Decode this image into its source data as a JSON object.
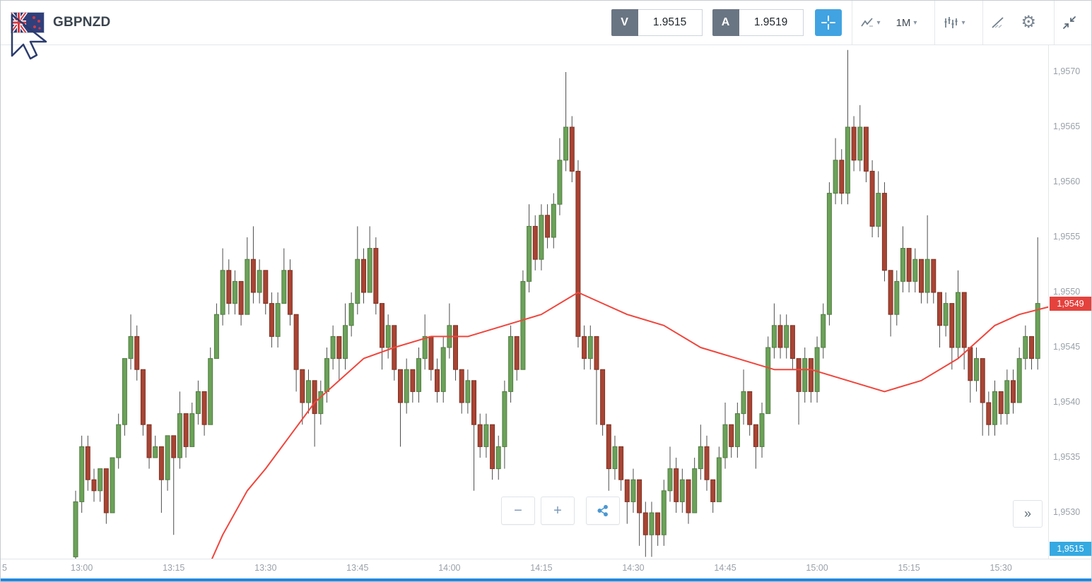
{
  "window": {
    "title": "GBPNZD"
  },
  "header": {
    "symbol": "GBPNZD",
    "sell_button": {
      "label": "V",
      "price": "1.9515"
    },
    "buy_button": {
      "label": "A",
      "price": "1.9519"
    },
    "timeframe": {
      "value": "1M"
    }
  },
  "glyphs": {
    "chevron_down": "▾",
    "gear": "⚙",
    "zoom_out": "−",
    "zoom_in": "+",
    "fast_forward": "»"
  },
  "icons": {
    "flag": "gbpnzd-flag-icon",
    "cursor": "mouse-cursor-artifact",
    "crosshair": "crosshair-icon",
    "chart_type": "chart-type-icon",
    "indicators": "indicators-icon",
    "drawing": "trend-line-icon",
    "settings": "gear-icon",
    "collapse": "collapse-arrows-icon",
    "share": "share-icon"
  },
  "colors": {
    "accent_blue": "#41a3e1",
    "quote_tag_gray": "#6a7583",
    "badge_red": "#e5423d",
    "badge_blue": "#35a9e1",
    "scrollbar_blue": "#1f88e0"
  },
  "price_axis": {
    "labels": [
      {
        "text": "1,9570",
        "value": 1.957
      },
      {
        "text": "1,9565",
        "value": 1.9565
      },
      {
        "text": "1,9560",
        "value": 1.956
      },
      {
        "text": "1,9555",
        "value": 1.9555
      },
      {
        "text": "1,9550",
        "value": 1.955
      },
      {
        "text": "1,9545",
        "value": 1.9545
      },
      {
        "text": "1,9540",
        "value": 1.954
      },
      {
        "text": "1,9535",
        "value": 1.9535
      },
      {
        "text": "1,9530",
        "value": 1.953
      }
    ],
    "last_price_badge": {
      "text": "1,9549",
      "value": 1.9549,
      "color": "#e5423d"
    },
    "bid_badge": {
      "text": "1,9515",
      "color": "#35a9e1"
    }
  },
  "time_axis": {
    "start": "12:59",
    "interval_min": 1,
    "labels": [
      "13:00",
      "13:15",
      "13:30",
      "13:45",
      "14:00",
      "14:15",
      "14:30",
      "14:45",
      "15:00",
      "15:15",
      "15:30"
    ],
    "partial_left_label": "5"
  },
  "chart_data": {
    "type": "candlestick",
    "symbol": "GBPNZD",
    "interval": "1M",
    "start_time": "12:59",
    "price_scale": {
      "top": 1.95725,
      "bottom": 1.95258,
      "grid": false,
      "axis_position": "right"
    },
    "colors": {
      "up": "#6ba259",
      "up_border": "#527c42",
      "down": "#a94434",
      "down_border": "#7e3223",
      "wick": "#4d4d4d"
    },
    "candles": [
      [
        1.9526,
        1.9532,
        1.9525,
        1.9531
      ],
      [
        1.9531,
        1.9537,
        1.953,
        1.9536
      ],
      [
        1.9536,
        1.9537,
        1.9532,
        1.9533
      ],
      [
        1.9533,
        1.9534,
        1.9531,
        1.9532
      ],
      [
        1.9532,
        1.9534,
        1.9531,
        1.9534
      ],
      [
        1.9534,
        1.9534,
        1.9529,
        1.953
      ],
      [
        1.953,
        1.9535,
        1.953,
        1.9535
      ],
      [
        1.9535,
        1.9539,
        1.9534,
        1.9538
      ],
      [
        1.9538,
        1.9544,
        1.9537,
        1.9544
      ],
      [
        1.9544,
        1.9548,
        1.9543,
        1.9546
      ],
      [
        1.9546,
        1.9547,
        1.9542,
        1.9543
      ],
      [
        1.9543,
        1.9543,
        1.9537,
        1.9538
      ],
      [
        1.9538,
        1.9538,
        1.9534,
        1.9535
      ],
      [
        1.9535,
        1.9537,
        1.9535,
        1.9536
      ],
      [
        1.9536,
        1.9536,
        1.953,
        1.9533
      ],
      [
        1.9533,
        1.9537,
        1.9532,
        1.9537
      ],
      [
        1.9537,
        1.9537,
        1.9528,
        1.9535
      ],
      [
        1.9535,
        1.9541,
        1.9534,
        1.9539
      ],
      [
        1.9539,
        1.9539,
        1.9535,
        1.9536
      ],
      [
        1.9536,
        1.954,
        1.9536,
        1.9539
      ],
      [
        1.9539,
        1.9542,
        1.9538,
        1.9541
      ],
      [
        1.9541,
        1.9541,
        1.9537,
        1.9538
      ],
      [
        1.9538,
        1.9545,
        1.9538,
        1.9544
      ],
      [
        1.9544,
        1.9549,
        1.9544,
        1.9548
      ],
      [
        1.9548,
        1.9554,
        1.9547,
        1.9552
      ],
      [
        1.9552,
        1.9553,
        1.9548,
        1.9549
      ],
      [
        1.9549,
        1.9552,
        1.9548,
        1.9551
      ],
      [
        1.9551,
        1.9551,
        1.9547,
        1.9548
      ],
      [
        1.9548,
        1.9555,
        1.9548,
        1.9553
      ],
      [
        1.9553,
        1.9556,
        1.9549,
        1.955
      ],
      [
        1.955,
        1.9553,
        1.9549,
        1.9552
      ],
      [
        1.9552,
        1.9552,
        1.9548,
        1.9549
      ],
      [
        1.9549,
        1.955,
        1.9545,
        1.9546
      ],
      [
        1.9546,
        1.955,
        1.9545,
        1.9549
      ],
      [
        1.9549,
        1.9554,
        1.9549,
        1.9552
      ],
      [
        1.9552,
        1.9553,
        1.9547,
        1.9548
      ],
      [
        1.9548,
        1.9548,
        1.9541,
        1.9543
      ],
      [
        1.9543,
        1.9543,
        1.9538,
        1.954
      ],
      [
        1.954,
        1.9543,
        1.9539,
        1.9542
      ],
      [
        1.9542,
        1.9542,
        1.9536,
        1.9539
      ],
      [
        1.9539,
        1.9542,
        1.9538,
        1.9541
      ],
      [
        1.9541,
        1.9545,
        1.954,
        1.9544
      ],
      [
        1.9544,
        1.9547,
        1.9543,
        1.9546
      ],
      [
        1.9546,
        1.9546,
        1.9542,
        1.9544
      ],
      [
        1.9544,
        1.9549,
        1.9543,
        1.9547
      ],
      [
        1.9547,
        1.955,
        1.9546,
        1.9549
      ],
      [
        1.9549,
        1.9556,
        1.9548,
        1.9553
      ],
      [
        1.9553,
        1.9554,
        1.9549,
        1.955
      ],
      [
        1.955,
        1.9556,
        1.955,
        1.9554
      ],
      [
        1.9554,
        1.9555,
        1.9548,
        1.9549
      ],
      [
        1.9549,
        1.9549,
        1.9543,
        1.9545
      ],
      [
        1.9545,
        1.9548,
        1.9544,
        1.9547
      ],
      [
        1.9547,
        1.9547,
        1.9542,
        1.9543
      ],
      [
        1.9543,
        1.9543,
        1.9536,
        1.954
      ],
      [
        1.954,
        1.9544,
        1.9539,
        1.9543
      ],
      [
        1.9543,
        1.9543,
        1.954,
        1.9541
      ],
      [
        1.9541,
        1.9545,
        1.954,
        1.9544
      ],
      [
        1.9544,
        1.9548,
        1.9543,
        1.9546
      ],
      [
        1.9546,
        1.9546,
        1.9542,
        1.9543
      ],
      [
        1.9543,
        1.9544,
        1.954,
        1.9541
      ],
      [
        1.9541,
        1.9546,
        1.954,
        1.9545
      ],
      [
        1.9545,
        1.9549,
        1.9544,
        1.9547
      ],
      [
        1.9547,
        1.9547,
        1.9542,
        1.9543
      ],
      [
        1.9543,
        1.9543,
        1.9539,
        1.954
      ],
      [
        1.954,
        1.9543,
        1.9539,
        1.9542
      ],
      [
        1.9542,
        1.9542,
        1.9532,
        1.9538
      ],
      [
        1.9538,
        1.9539,
        1.9535,
        1.9536
      ],
      [
        1.9536,
        1.9539,
        1.9535,
        1.9538
      ],
      [
        1.9538,
        1.9538,
        1.9533,
        1.9534
      ],
      [
        1.9534,
        1.9537,
        1.9533,
        1.9536
      ],
      [
        1.9536,
        1.9542,
        1.9534,
        1.9541
      ],
      [
        1.9541,
        1.9547,
        1.954,
        1.9546
      ],
      [
        1.9546,
        1.9546,
        1.9542,
        1.9543
      ],
      [
        1.9543,
        1.9552,
        1.9543,
        1.9551
      ],
      [
        1.9551,
        1.9558,
        1.955,
        1.9556
      ],
      [
        1.9556,
        1.9557,
        1.9552,
        1.9553
      ],
      [
        1.9553,
        1.9558,
        1.9552,
        1.9557
      ],
      [
        1.9557,
        1.9558,
        1.9554,
        1.9555
      ],
      [
        1.9555,
        1.9559,
        1.9554,
        1.9558
      ],
      [
        1.9558,
        1.9564,
        1.9557,
        1.9562
      ],
      [
        1.9562,
        1.957,
        1.9561,
        1.9565
      ],
      [
        1.9565,
        1.9566,
        1.956,
        1.9561
      ],
      [
        1.9561,
        1.9562,
        1.9545,
        1.9546
      ],
      [
        1.9546,
        1.9547,
        1.9543,
        1.9544
      ],
      [
        1.9544,
        1.9547,
        1.9543,
        1.9546
      ],
      [
        1.9546,
        1.9546,
        1.9538,
        1.9543
      ],
      [
        1.9543,
        1.9543,
        1.9537,
        1.9538
      ],
      [
        1.9538,
        1.9538,
        1.9532,
        1.9534
      ],
      [
        1.9534,
        1.9537,
        1.9533,
        1.9536
      ],
      [
        1.9536,
        1.9536,
        1.9532,
        1.9533
      ],
      [
        1.9533,
        1.9533,
        1.9529,
        1.9531
      ],
      [
        1.9531,
        1.9534,
        1.953,
        1.9533
      ],
      [
        1.9533,
        1.9533,
        1.9527,
        1.953
      ],
      [
        1.953,
        1.9531,
        1.9526,
        1.9528
      ],
      [
        1.9528,
        1.9531,
        1.9526,
        1.953
      ],
      [
        1.953,
        1.953,
        1.9527,
        1.9528
      ],
      [
        1.9528,
        1.9533,
        1.9527,
        1.9532
      ],
      [
        1.9532,
        1.9536,
        1.9531,
        1.9534
      ],
      [
        1.9534,
        1.9535,
        1.953,
        1.9531
      ],
      [
        1.9531,
        1.9534,
        1.953,
        1.9533
      ],
      [
        1.9533,
        1.9533,
        1.9529,
        1.953
      ],
      [
        1.953,
        1.9535,
        1.953,
        1.9534
      ],
      [
        1.9534,
        1.9538,
        1.9533,
        1.9536
      ],
      [
        1.9536,
        1.9537,
        1.9532,
        1.9533
      ],
      [
        1.9533,
        1.9533,
        1.953,
        1.9531
      ],
      [
        1.9531,
        1.9536,
        1.9531,
        1.9535
      ],
      [
        1.9535,
        1.954,
        1.9534,
        1.9538
      ],
      [
        1.9538,
        1.9538,
        1.9535,
        1.9536
      ],
      [
        1.9536,
        1.954,
        1.9535,
        1.9539
      ],
      [
        1.9539,
        1.9543,
        1.9538,
        1.9541
      ],
      [
        1.9541,
        1.9541,
        1.9537,
        1.9538
      ],
      [
        1.9538,
        1.9538,
        1.9534,
        1.9536
      ],
      [
        1.9536,
        1.954,
        1.9535,
        1.9539
      ],
      [
        1.9539,
        1.9546,
        1.9539,
        1.9545
      ],
      [
        1.9545,
        1.9549,
        1.9544,
        1.9547
      ],
      [
        1.9547,
        1.9548,
        1.9544,
        1.9545
      ],
      [
        1.9545,
        1.9548,
        1.9544,
        1.9547
      ],
      [
        1.9547,
        1.9547,
        1.9543,
        1.9544
      ],
      [
        1.9544,
        1.9544,
        1.9538,
        1.9541
      ],
      [
        1.9541,
        1.9545,
        1.954,
        1.9544
      ],
      [
        1.9544,
        1.9544,
        1.954,
        1.9541
      ],
      [
        1.9541,
        1.9546,
        1.954,
        1.9545
      ],
      [
        1.9545,
        1.9549,
        1.9544,
        1.9548
      ],
      [
        1.9548,
        1.956,
        1.9547,
        1.9559
      ],
      [
        1.9559,
        1.9564,
        1.9558,
        1.9562
      ],
      [
        1.9562,
        1.9563,
        1.9558,
        1.9559
      ],
      [
        1.9559,
        1.9572,
        1.9558,
        1.9565
      ],
      [
        1.9565,
        1.9566,
        1.9561,
        1.9562
      ],
      [
        1.9562,
        1.9567,
        1.9561,
        1.9565
      ],
      [
        1.9565,
        1.9565,
        1.956,
        1.9561
      ],
      [
        1.9561,
        1.9562,
        1.9555,
        1.9556
      ],
      [
        1.9556,
        1.9561,
        1.9555,
        1.9559
      ],
      [
        1.9559,
        1.956,
        1.9551,
        1.9552
      ],
      [
        1.9552,
        1.9552,
        1.9546,
        1.9548
      ],
      [
        1.9548,
        1.9552,
        1.9547,
        1.9551
      ],
      [
        1.9551,
        1.9556,
        1.955,
        1.9554
      ],
      [
        1.9554,
        1.9554,
        1.955,
        1.9551
      ],
      [
        1.9551,
        1.9554,
        1.955,
        1.9553
      ],
      [
        1.9553,
        1.9553,
        1.9549,
        1.955
      ],
      [
        1.955,
        1.9557,
        1.9549,
        1.9553
      ],
      [
        1.9553,
        1.9553,
        1.9549,
        1.955
      ],
      [
        1.955,
        1.955,
        1.9545,
        1.9547
      ],
      [
        1.9547,
        1.955,
        1.9546,
        1.9549
      ],
      [
        1.9549,
        1.9549,
        1.9543,
        1.9545
      ],
      [
        1.9545,
        1.9552,
        1.9544,
        1.955
      ],
      [
        1.955,
        1.955,
        1.9543,
        1.9545
      ],
      [
        1.9545,
        1.9545,
        1.954,
        1.9542
      ],
      [
        1.9542,
        1.9545,
        1.9541,
        1.9544
      ],
      [
        1.9544,
        1.9544,
        1.9537,
        1.954
      ],
      [
        1.954,
        1.9541,
        1.9537,
        1.9538
      ],
      [
        1.9538,
        1.9542,
        1.9537,
        1.9541
      ],
      [
        1.9541,
        1.9541,
        1.9538,
        1.9539
      ],
      [
        1.9539,
        1.9543,
        1.9538,
        1.9542
      ],
      [
        1.9542,
        1.9543,
        1.9539,
        1.954
      ],
      [
        1.954,
        1.9545,
        1.954,
        1.9544
      ],
      [
        1.9544,
        1.9547,
        1.9543,
        1.9546
      ],
      [
        1.9546,
        1.9546,
        1.9543,
        1.9544
      ],
      [
        1.9544,
        1.9555,
        1.9543,
        1.9549
      ]
    ],
    "ma_line": {
      "color": "#f0453c",
      "points": [
        [
          20,
          1.9523
        ],
        [
          24,
          1.9528
        ],
        [
          28,
          1.9532
        ],
        [
          31,
          1.9534
        ],
        [
          35,
          1.9537
        ],
        [
          39,
          1.954
        ],
        [
          43,
          1.9542
        ],
        [
          47,
          1.9544
        ],
        [
          52,
          1.9545
        ],
        [
          58,
          1.9546
        ],
        [
          64,
          1.9546
        ],
        [
          70,
          1.9547
        ],
        [
          76,
          1.9548
        ],
        [
          82,
          1.955
        ],
        [
          86,
          1.9549
        ],
        [
          90,
          1.9548
        ],
        [
          96,
          1.9547
        ],
        [
          102,
          1.9545
        ],
        [
          108,
          1.9544
        ],
        [
          114,
          1.9543
        ],
        [
          120,
          1.9543
        ],
        [
          126,
          1.9542
        ],
        [
          132,
          1.9541
        ],
        [
          138,
          1.9542
        ],
        [
          144,
          1.9544
        ],
        [
          150,
          1.9547
        ],
        [
          154,
          1.9548
        ],
        [
          161,
          1.9549
        ]
      ]
    }
  }
}
